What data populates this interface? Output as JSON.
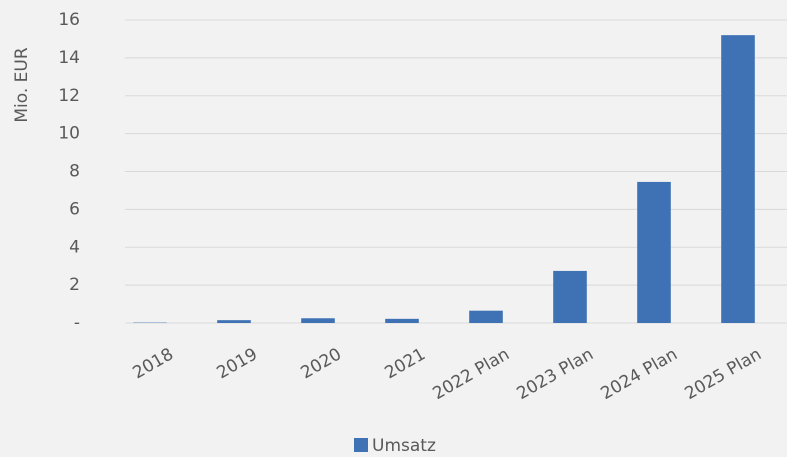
{
  "chart_data": {
    "type": "bar",
    "ylabel": "Mio. EUR",
    "categories": [
      "2018",
      "2019",
      "2020",
      "2021",
      "2022 Plan",
      "2023 Plan",
      "2024 Plan",
      "2025 Plan"
    ],
    "series": [
      {
        "name": "Umsatz",
        "color": "#3f72b5",
        "values": [
          0.02,
          0.15,
          0.25,
          0.22,
          0.65,
          2.75,
          7.45,
          15.2
        ]
      }
    ],
    "ylim": [
      0,
      16
    ],
    "yticks": [
      {
        "value": 0,
        "label": "-"
      },
      2,
      4,
      6,
      8,
      10,
      12,
      14,
      16
    ],
    "grid": true,
    "legend": "bottom"
  }
}
